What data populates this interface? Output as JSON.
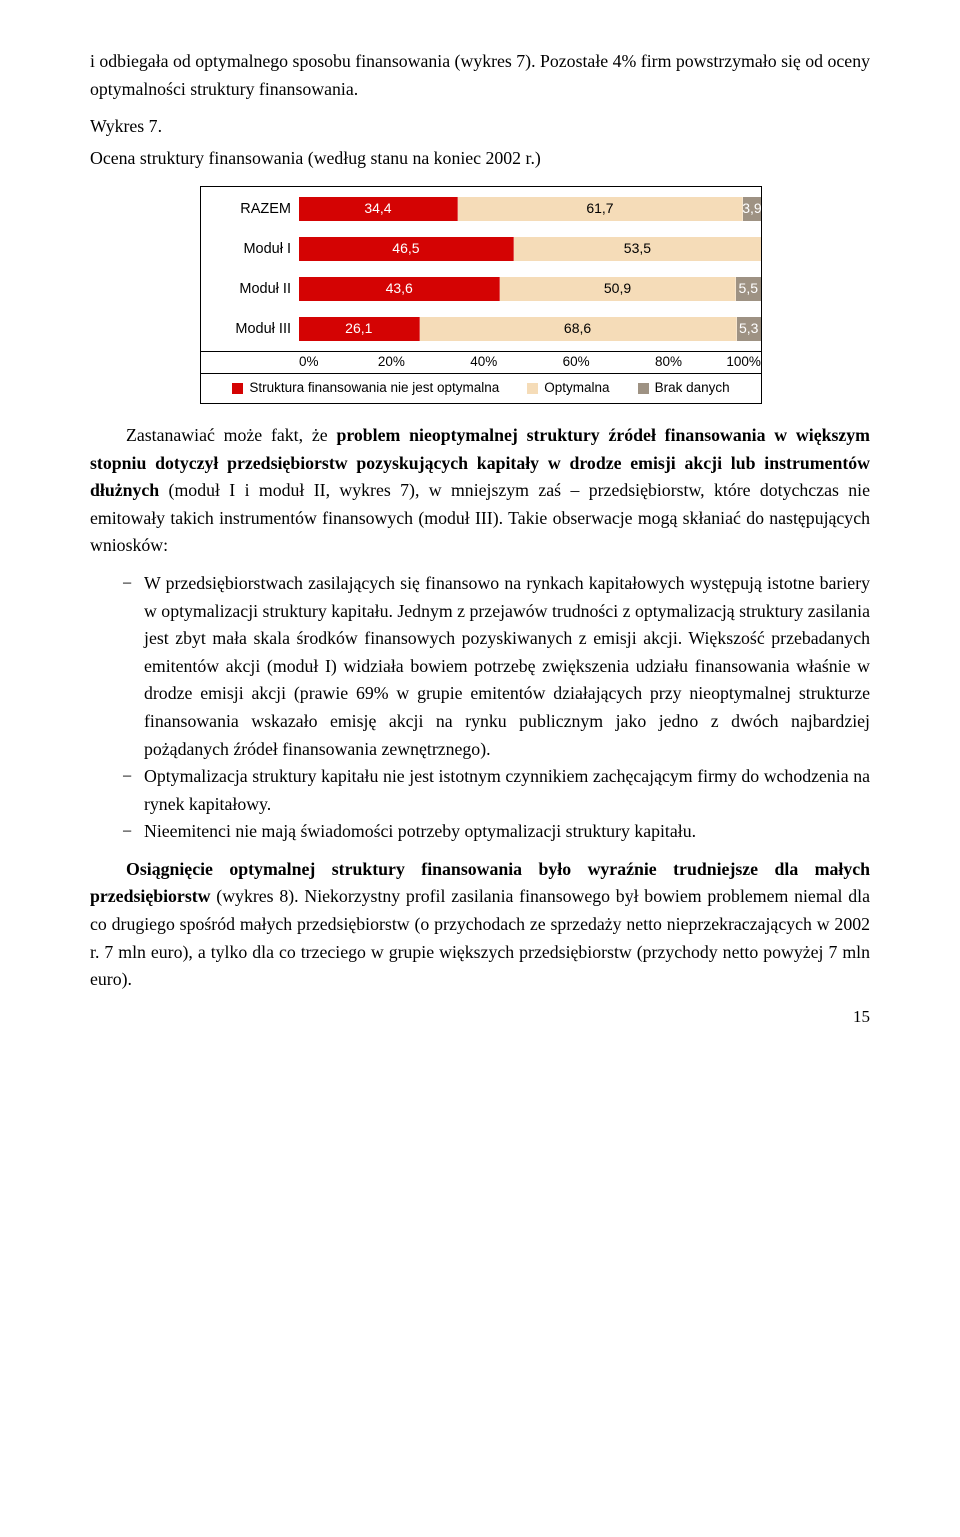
{
  "para1": "i odbiegała od optymalnego sposobu finansowania (wykres 7). Pozostałe 4% firm powstrzymało się od oceny optymalności struktury finansowania.",
  "caption_line1": "Wykres 7.",
  "caption_line2": "Ocena struktury finansowania (według stanu na koniec 2002 r.)",
  "chart": {
    "categories": [
      "RAZEM",
      "Moduł I",
      "Moduł II",
      "Moduł III"
    ],
    "series_labels": [
      "Struktura finansowania nie jest optymalna",
      "Optymalna",
      "Brak danych"
    ],
    "series_colors": [
      "#d40303",
      "#f5dcb8",
      "#9e9283"
    ],
    "value_text_colors": [
      "#ffffff",
      "#000000",
      "#ffffff"
    ],
    "rows": [
      [
        34.4,
        61.7,
        3.9
      ],
      [
        46.5,
        53.5,
        0
      ],
      [
        43.6,
        50.9,
        5.5
      ],
      [
        26.1,
        68.6,
        5.3
      ]
    ],
    "display_values": [
      [
        "34,4",
        "61,7",
        "3,9"
      ],
      [
        "46,5",
        "53,5",
        ""
      ],
      [
        "43,6",
        "50,9",
        "5,5"
      ],
      [
        "26,1",
        "68,6",
        "5,3"
      ]
    ],
    "xticks": [
      "0%",
      "20%",
      "40%",
      "60%",
      "80%",
      "100%"
    ]
  },
  "para2_pre": "Zastanawiać może fakt, że ",
  "para2_bold": "problem nieoptymalnej struktury źródeł finansowania w większym stopniu dotyczył przedsiębiorstw pozyskujących kapitały w drodze emisji akcji lub instrumentów dłużnych",
  "para2_post": " (moduł I i moduł II, wykres 7), w mniejszym zaś – przedsiębiorstw, które dotychczas nie emitowały takich instrumentów finansowych (moduł III). Takie obserwacje mogą skłaniać do następujących wniosków:",
  "bullets": [
    "W przedsiębiorstwach zasilających się finansowo na rynkach kapitałowych występują istotne bariery w optymalizacji struktury kapitału. Jednym z przejawów trudności z optymalizacją struktury zasilania jest zbyt mała skala środków finansowych pozyskiwanych z emisji akcji. Większość przebadanych emitentów akcji (moduł I) widziała bowiem potrzebę zwiększenia udziału finansowania właśnie w drodze emisji akcji (prawie 69% w grupie emitentów działających przy nieoptymalnej strukturze finansowania wskazało emisję akcji na rynku publicznym jako jedno z dwóch najbardziej pożądanych źródeł finansowania zewnętrznego).",
    "Optymalizacja struktury kapitału nie jest istotnym czynnikiem zachęcającym firmy do wchodzenia na rynek kapitałowy.",
    "Nieemitenci nie mają świadomości potrzeby optymalizacji struktury kapitału."
  ],
  "para3_pre": "Osiągnięcie optymalnej struktury finansowania było wyraźnie trudniejsze dla małych przedsiębiorstw",
  "para3_post": " (wykres 8). Niekorzystny profil zasilania finansowego był bowiem problemem niemal dla co drugiego spośród małych przedsiębiorstw (o przychodach ze sprzedaży netto nieprzekraczających w 2002 r. 7 mln euro), a tylko dla co trzeciego w grupie większych przedsiębiorstw (przychody netto powyżej 7 mln euro).",
  "page_number": "15"
}
